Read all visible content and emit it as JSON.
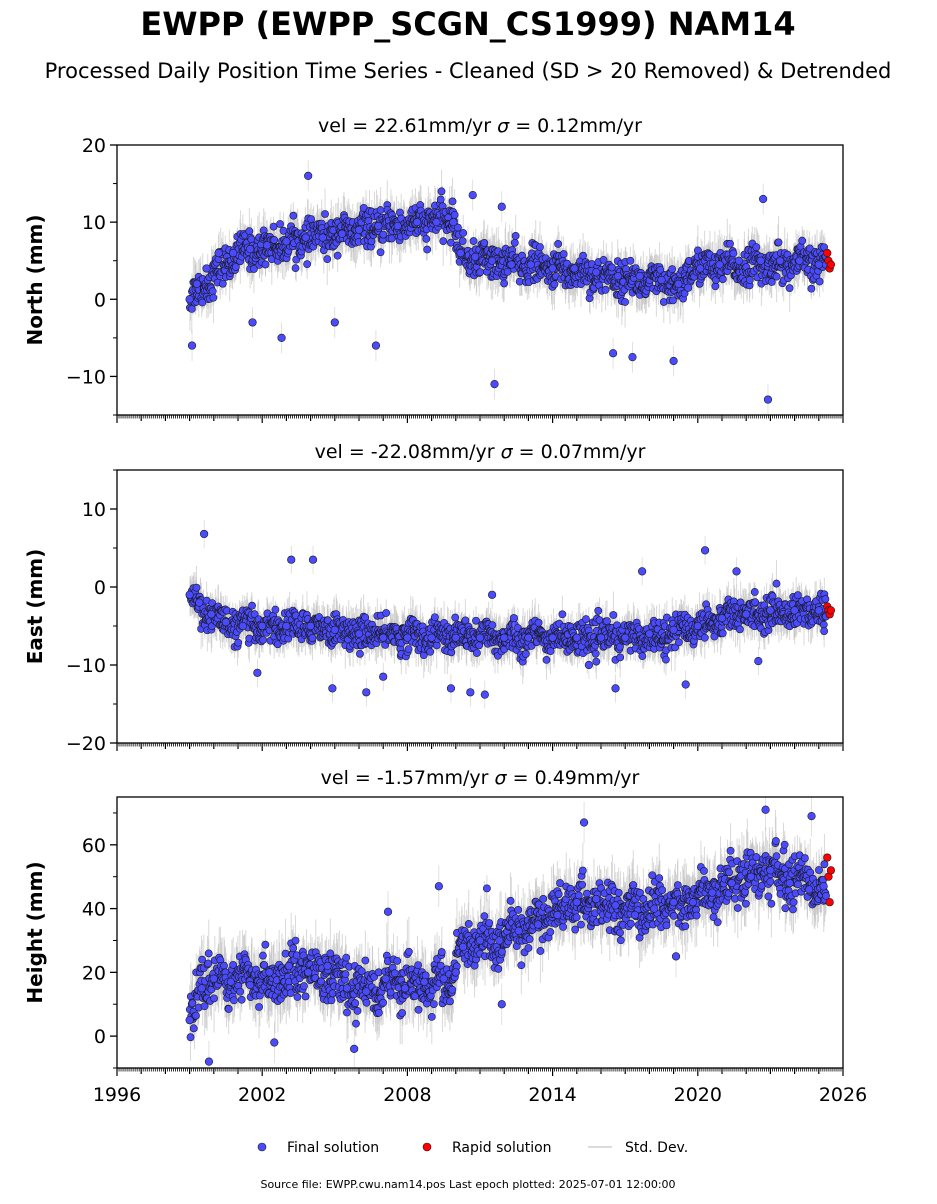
{
  "title": "EWPP (EWPP_SCGN_CS1999) NAM14",
  "subtitle": "Processed Daily Position Time Series - Cleaned (SD > 20 Removed) & Detrended",
  "legend": [
    {
      "label": "Final solution",
      "color": "#4a4aff",
      "marker": "circle"
    },
    {
      "label": "Rapid solution",
      "color": "#ff0000",
      "marker": "circle"
    },
    {
      "label": "Std. Dev.",
      "color": "#cfcfcf",
      "marker": "line"
    }
  ],
  "footer": "Source file: EWPP.cwu.nam14.pos  Last epoch plotted: 2025-07-01 12:00:00",
  "colors": {
    "final": "#4a4aff",
    "rapid": "#ff0000",
    "stddev": "#b9b9b9",
    "edge": "#1a1a1a"
  },
  "chart_data": [
    {
      "type": "scatter",
      "name": "north",
      "title_prefix": "vel = 22.61mm/yr",
      "sigma_text": "= 0.12mm/yr",
      "ylabel": "North (mm)",
      "ylim": [
        -15,
        20
      ],
      "yticks": [
        -10,
        0,
        10,
        20
      ],
      "yticklabels": [
        "−10",
        "0",
        "10",
        "20"
      ],
      "xlim": [
        1996,
        2026
      ],
      "xticks": [],
      "xticklabels": [],
      "series": [
        {
          "name": "Final solution",
          "x": [
            1999.0,
            1999.3,
            1999.7,
            2000.2,
            2000.8,
            2001.5,
            2002.2,
            2003.0,
            2003.8,
            2004.5,
            2005.3,
            2006.0,
            2006.8,
            2007.6,
            2008.4,
            2009.2,
            2009.9,
            2010.2,
            2010.8,
            2011.5,
            2012.3,
            2013.1,
            2014.0,
            2014.9,
            2015.8,
            2016.7,
            2017.6,
            2018.5,
            2019.2,
            2019.6,
            2020.1,
            2020.9,
            2021.7,
            2022.6,
            2023.4,
            2024.2,
            2025.0,
            2025.3
          ],
          "y": [
            0,
            2,
            4,
            6,
            6,
            6.5,
            7,
            7.5,
            8,
            8,
            8.5,
            9,
            9.5,
            9.5,
            10,
            10,
            10,
            6,
            5.5,
            5,
            4.5,
            4.5,
            4,
            4,
            3.5,
            3,
            3,
            2.5,
            2,
            1.5,
            4,
            4.5,
            5,
            5,
            5,
            5,
            4.5,
            4.5
          ]
        },
        {
          "name": "Rapid solution",
          "x": [
            2025.35,
            2025.4,
            2025.45,
            2025.5
          ],
          "y": [
            6,
            5,
            4,
            4.5
          ]
        }
      ],
      "outliers": {
        "x": [
          1999.1,
          2001.6,
          2002.8,
          2003.9,
          2005.0,
          2006.7,
          2010.7,
          2011.6,
          2011.9,
          2016.5,
          2017.3,
          2019.0,
          2022.7,
          2022.9
        ],
        "y": [
          -6,
          -3,
          -5,
          16,
          -3,
          -6,
          13.5,
          -11,
          12,
          -7,
          -7.5,
          -8,
          13,
          -13
        ]
      },
      "trend": [
        [
          1999.0,
          0
        ],
        [
          2001.0,
          6
        ],
        [
          2005.0,
          8.5
        ],
        [
          2009.9,
          10.5
        ],
        [
          2010.2,
          5.5
        ],
        [
          2014.0,
          4
        ],
        [
          2019.4,
          1.5
        ],
        [
          2019.6,
          4
        ],
        [
          2025.5,
          4.8
        ]
      ],
      "spread": 2.0
    },
    {
      "type": "scatter",
      "name": "east",
      "title_prefix": "vel = -22.08mm/yr",
      "sigma_text": "= 0.07mm/yr",
      "ylabel": "East (mm)",
      "ylim": [
        -20,
        15
      ],
      "yticks": [
        -20,
        -10,
        0,
        10
      ],
      "yticklabels": [
        "−20",
        "−10",
        "0",
        "10"
      ],
      "xlim": [
        1996,
        2026
      ],
      "xticks": [],
      "xticklabels": [],
      "series": [
        {
          "name": "Final solution",
          "x": [
            1999.0,
            1999.4,
            1999.9,
            2000.5,
            2001.2,
            2002.0,
            2003.0,
            2004.0,
            2005.0,
            2006.0,
            2007.0,
            2008.0,
            2009.0,
            2010.0,
            2011.0,
            2012.0,
            2013.0,
            2014.0,
            2015.0,
            2016.0,
            2017.0,
            2018.0,
            2019.0,
            2020.0,
            2021.0,
            2022.0,
            2023.0,
            2024.0,
            2025.0
          ],
          "y": [
            -1,
            -2,
            -3.5,
            -4.5,
            -5,
            -5,
            -5,
            -5,
            -5.5,
            -6,
            -6.5,
            -6.5,
            -6.5,
            -6.5,
            -6.5,
            -6.5,
            -6.5,
            -6.5,
            -6.5,
            -6.5,
            -6.5,
            -6,
            -5.5,
            -5,
            -4,
            -3.5,
            -3,
            -3,
            -3
          ]
        },
        {
          "name": "Rapid solution",
          "x": [
            2025.35,
            2025.4,
            2025.45,
            2025.5
          ],
          "y": [
            -2.5,
            -3,
            -3.5,
            -3
          ]
        }
      ],
      "outliers": {
        "x": [
          1999.6,
          2001.8,
          2003.2,
          2004.1,
          2004.9,
          2006.3,
          2007.0,
          2009.8,
          2010.6,
          2011.2,
          2011.5,
          2012.4,
          2015.5,
          2016.6,
          2017.7,
          2019.5,
          2020.3,
          2021.6,
          2022.5
        ],
        "y": [
          6.8,
          -11,
          3.5,
          3.5,
          -13,
          -13.5,
          -11.5,
          -13,
          -13.5,
          -13.8,
          -1,
          -4,
          -10,
          -13,
          2,
          -12.5,
          4.7,
          2,
          -9.5
        ]
      },
      "trend": [
        [
          1999.0,
          -1
        ],
        [
          1999.8,
          -3.5
        ],
        [
          2000.8,
          -5
        ],
        [
          2004.5,
          -5.2
        ],
        [
          2006.0,
          -6
        ],
        [
          2012.0,
          -6.5
        ],
        [
          2018.0,
          -6.5
        ],
        [
          2020.0,
          -5
        ],
        [
          2021.5,
          -3.5
        ],
        [
          2025.5,
          -3
        ]
      ],
      "spread": 1.8
    },
    {
      "type": "scatter",
      "name": "height",
      "title_prefix": "vel = -1.57mm/yr",
      "sigma_text": "= 0.49mm/yr",
      "ylabel": "Height (mm)",
      "ylim": [
        -10,
        75
      ],
      "yticks": [
        0,
        20,
        40,
        60
      ],
      "yticklabels": [
        "0",
        "20",
        "40",
        "60"
      ],
      "xlim": [
        1996,
        2026
      ],
      "xticks": [
        1996,
        2002,
        2008,
        2014,
        2020,
        2026
      ],
      "xticklabels": [
        "1996",
        "2002",
        "2008",
        "2014",
        "2020",
        "2026"
      ],
      "series": [
        {
          "name": "Final solution",
          "x": [
            1999.0,
            1999.5,
            2000.0,
            2000.7,
            2001.5,
            2002.3,
            2003.1,
            2003.9,
            2004.7,
            2005.5,
            2006.3,
            2007.1,
            2007.9,
            2008.7,
            2009.5,
            2010.0,
            2010.3,
            2011.0,
            2011.8,
            2012.6,
            2013.4,
            2014.2,
            2015.0,
            2015.8,
            2016.6,
            2017.4,
            2018.2,
            2019.0,
            2019.8,
            2020.6,
            2021.4,
            2022.2,
            2023.0,
            2023.8,
            2024.6,
            2025.2
          ],
          "y": [
            5,
            15,
            18,
            17,
            16,
            20,
            22,
            20,
            22,
            15,
            14,
            18,
            15,
            17,
            18,
            20,
            28,
            30,
            30,
            33,
            35,
            38,
            42,
            43,
            41,
            38,
            40,
            42,
            42,
            45,
            48,
            50,
            52,
            48,
            46,
            47
          ]
        },
        {
          "name": "Rapid solution",
          "x": [
            2025.35,
            2025.4,
            2025.45,
            2025.5
          ],
          "y": [
            56,
            50,
            42,
            52
          ]
        }
      ],
      "outliers": {
        "x": [
          1999.8,
          2002.5,
          2005.8,
          2007.2,
          2009.3,
          2011.9,
          2015.3,
          2019.1,
          2022.8,
          2024.7
        ],
        "y": [
          -8,
          -2,
          -4,
          39,
          47,
          10,
          67,
          25,
          71,
          69
        ]
      },
      "trend": [
        [
          1999.0,
          5
        ],
        [
          1999.7,
          18
        ],
        [
          2002.0,
          17
        ],
        [
          2004.0,
          22
        ],
        [
          2005.5,
          15
        ],
        [
          2008.0,
          16
        ],
        [
          2009.8,
          17
        ],
        [
          2010.2,
          27
        ],
        [
          2012.0,
          31
        ],
        [
          2015.0,
          42
        ],
        [
          2017.0,
          39
        ],
        [
          2019.5,
          42
        ],
        [
          2022.5,
          52
        ],
        [
          2025.5,
          47
        ]
      ],
      "spread": 6.5
    }
  ]
}
